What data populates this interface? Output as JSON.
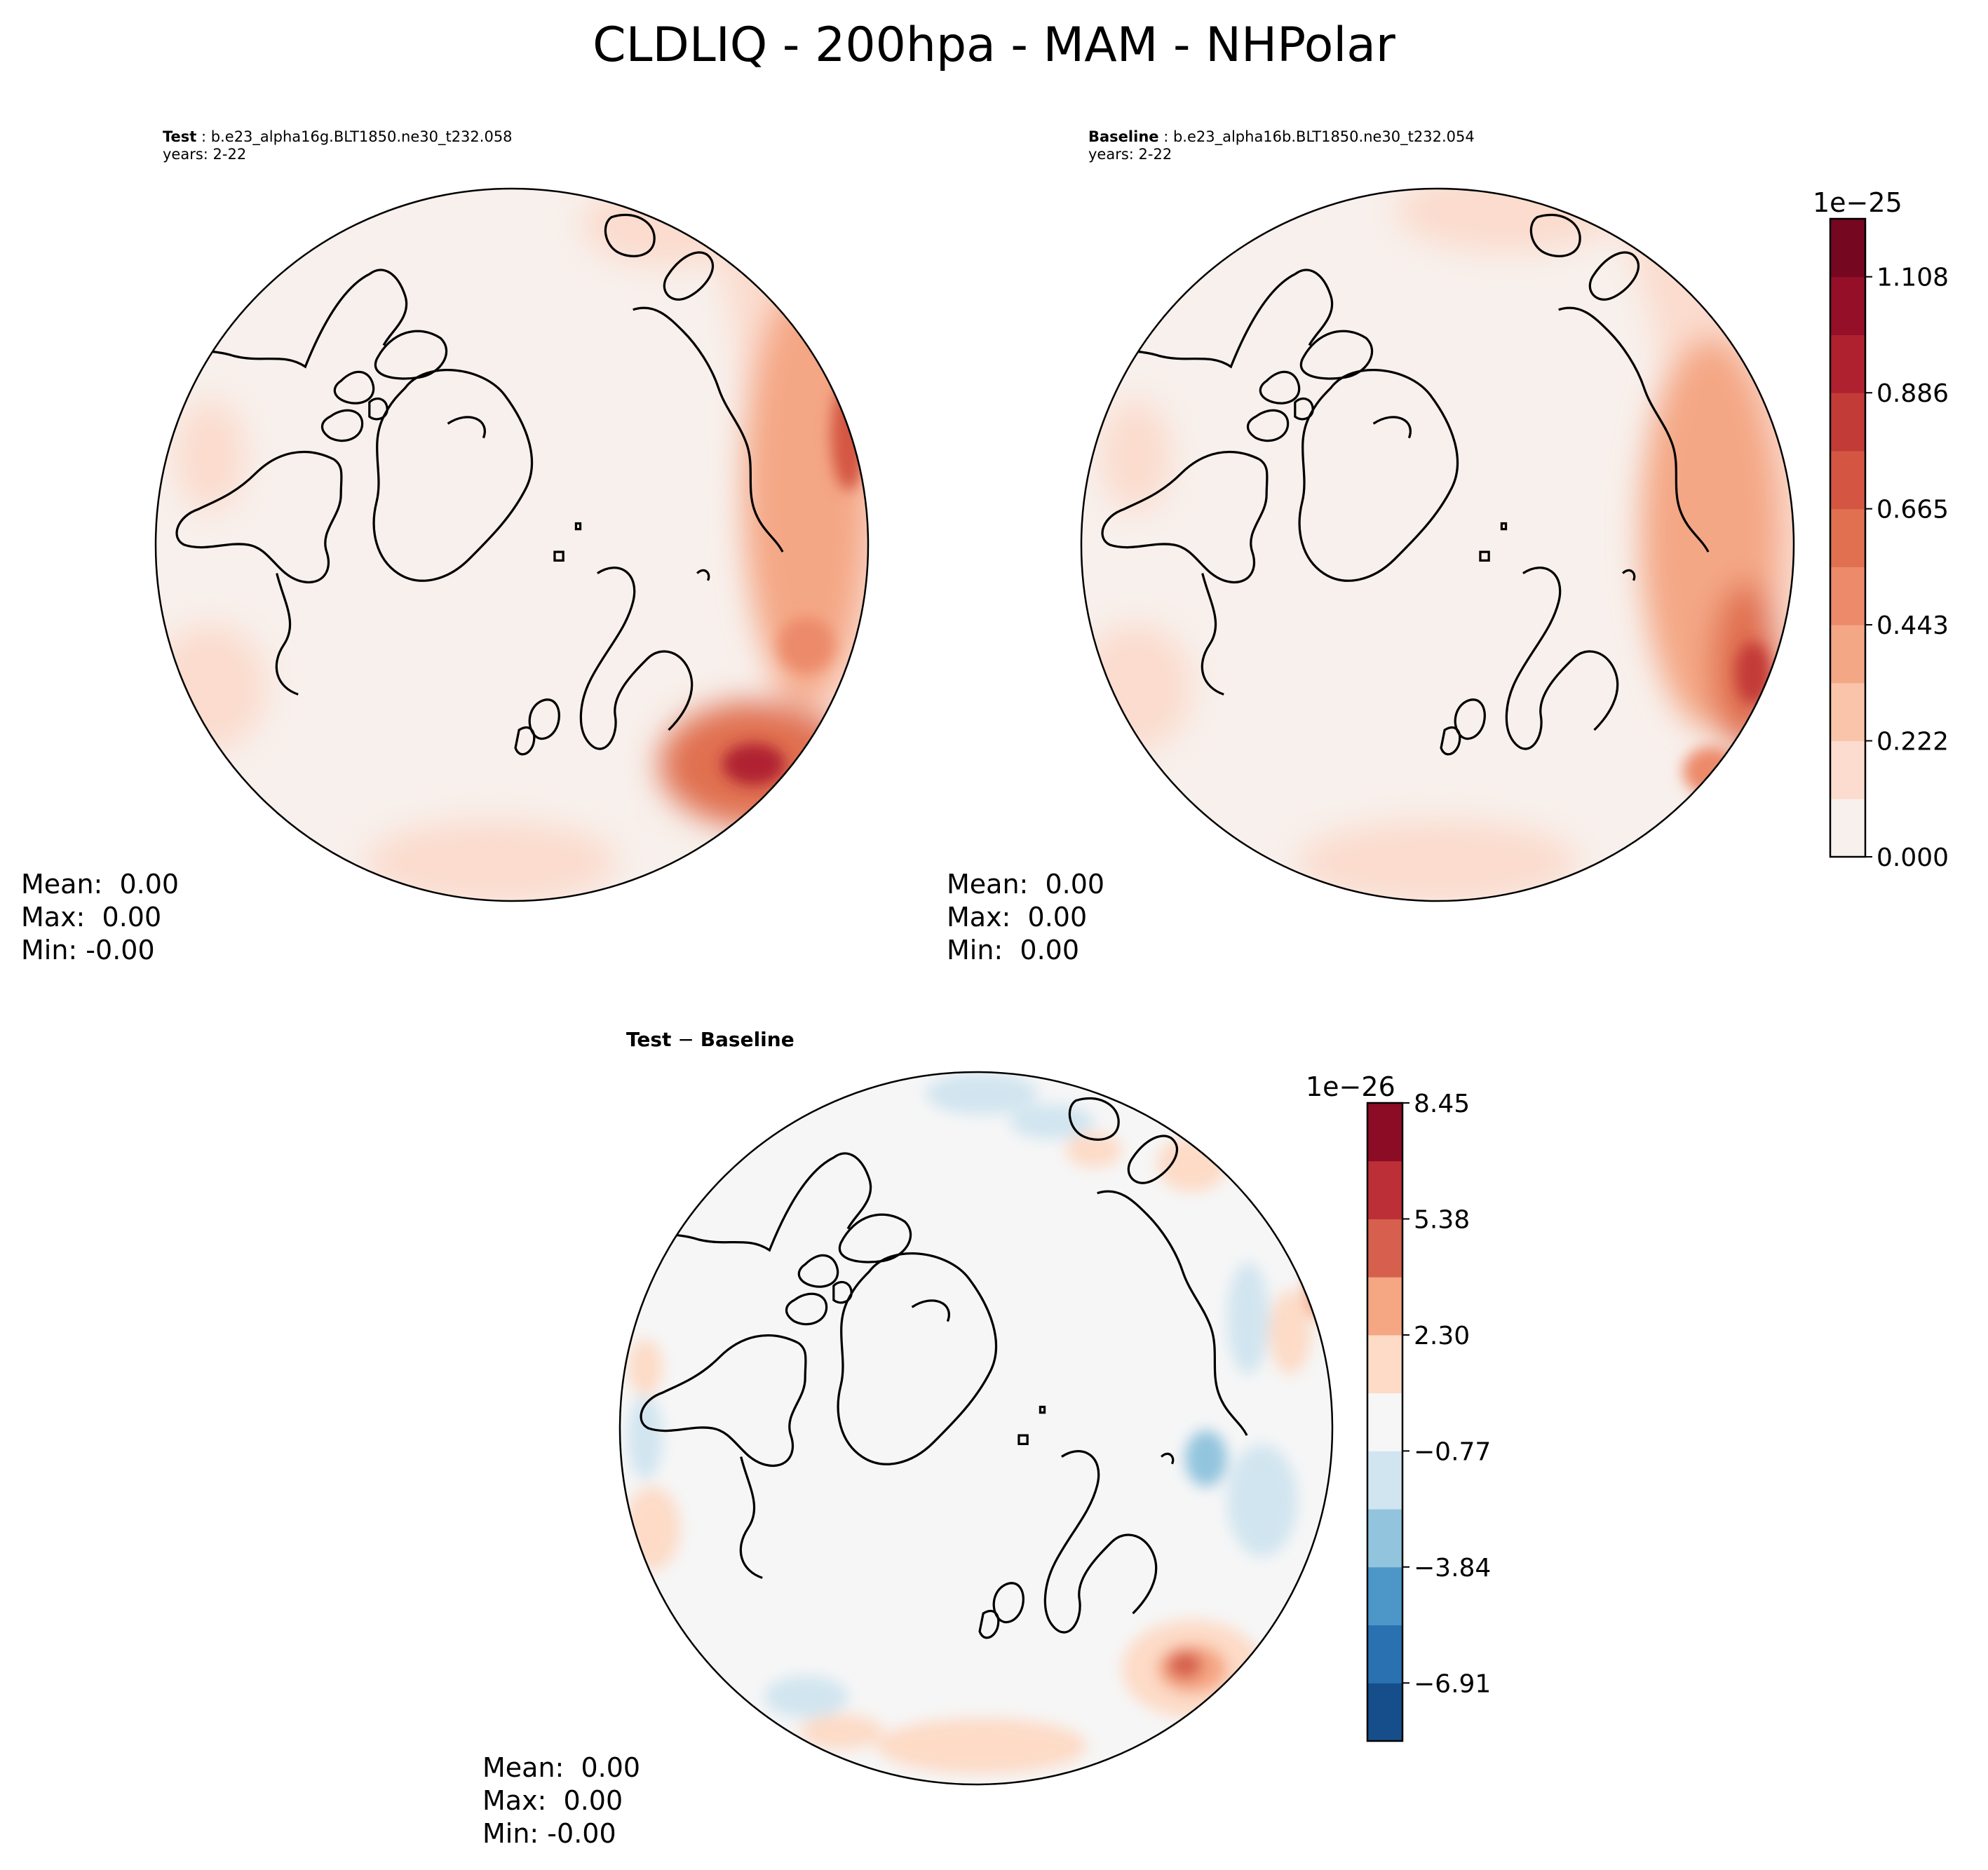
{
  "figure": {
    "title": "CLDLIQ - 200hpa - MAM - NHPolar"
  },
  "panels": {
    "test": {
      "label": "Test",
      "case": "b.e23_alpha16g.BLT1850.ne30_t232.058",
      "years": "years: 2-22",
      "stats": {
        "mean": "Mean:  0.00",
        "max": "Max:  0.00",
        "min": "Min: -0.00"
      }
    },
    "baseline": {
      "label": "Baseline",
      "case": "b.e23_alpha16b.BLT1850.ne30_t232.054",
      "years": "years: 2-22",
      "stats": {
        "mean": "Mean:  0.00",
        "max": "Max:  0.00",
        "min": "Min:  0.00"
      }
    },
    "diff": {
      "label_a": "Test",
      "label_op": " − ",
      "label_b": "Baseline",
      "stats": {
        "mean": "Mean:  0.00",
        "max": "Max:  0.00",
        "min": "Min: -0.00"
      }
    }
  },
  "colorbars": {
    "main": {
      "exponent": "1e−25",
      "ticks": [
        "0.000",
        "0.222",
        "0.443",
        "0.665",
        "0.886",
        "1.108"
      ],
      "colors": [
        "#f8f0ec",
        "#fbdcce",
        "#f9c4a9",
        "#f4a785",
        "#ec8a6a",
        "#e0704f",
        "#d45642",
        "#c23b37",
        "#b02130",
        "#950f28",
        "#760721"
      ]
    },
    "diff": {
      "exponent": "1e−26",
      "ticks": [
        "−6.91",
        "−3.84",
        "−0.77",
        "2.30",
        "5.38",
        "8.45"
      ],
      "colors": [
        "#154e8a",
        "#2a71b2",
        "#4d97c8",
        "#92c4de",
        "#d1e5f0",
        "#f6f6f6",
        "#fddbc7",
        "#f5a683",
        "#d6604d",
        "#bd2f36",
        "#8c0c25"
      ]
    }
  },
  "map_colors": {
    "background": "#f8f0ec",
    "light": "#fbdcce",
    "medium": "#f4a785",
    "strong": "#d45642",
    "intense": "#b02130",
    "diff_bg": "#f6f6f6",
    "diff_pos": "#fddbc7",
    "diff_pos_strong": "#d6604d",
    "diff_neg": "#d1e5f0",
    "coast": "#000000"
  }
}
